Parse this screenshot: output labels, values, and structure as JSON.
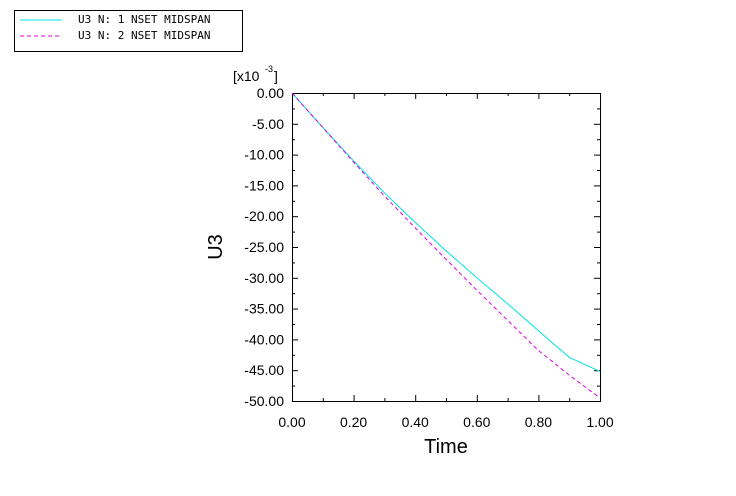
{
  "chart_data": {
    "type": "line",
    "xlabel": "Time",
    "ylabel": "U3",
    "y_scale_label": "[x10",
    "y_scale_exponent": "-3",
    "y_scale_close": "]",
    "xlim": [
      0.0,
      1.0
    ],
    "ylim": [
      -50.0,
      0.0
    ],
    "x_ticks": [
      "0.00",
      "0.20",
      "0.40",
      "0.60",
      "0.80",
      "1.00"
    ],
    "y_ticks": [
      "0.00",
      "-5.00",
      "-10.00",
      "-15.00",
      "-20.00",
      "-25.00",
      "-30.00",
      "-35.00",
      "-40.00",
      "-45.00",
      "-50.00"
    ],
    "legend_position": "top-left",
    "grid": false,
    "series": [
      {
        "name": "U3 N: 1 NSET MIDSPAN",
        "color": "#00e5e5",
        "dash": "solid",
        "x": [
          0.0,
          0.1,
          0.2,
          0.3,
          0.4,
          0.5,
          0.6,
          0.7,
          0.8,
          0.9,
          1.0
        ],
        "values": [
          0.0,
          -5.6,
          -11.0,
          -16.2,
          -21.0,
          -25.6,
          -30.0,
          -34.2,
          -38.6,
          -42.9,
          -45.2
        ]
      },
      {
        "name": "U3 N: 2 NSET MIDSPAN",
        "color": "#e000e0",
        "dash": "dashed",
        "x": [
          0.0,
          0.1,
          0.2,
          0.3,
          0.4,
          0.5,
          0.6,
          0.7,
          0.8,
          0.9,
          1.0
        ],
        "values": [
          0.0,
          -5.6,
          -11.2,
          -16.7,
          -21.9,
          -27.0,
          -32.0,
          -36.9,
          -41.8,
          -45.8,
          -49.5
        ]
      }
    ]
  }
}
